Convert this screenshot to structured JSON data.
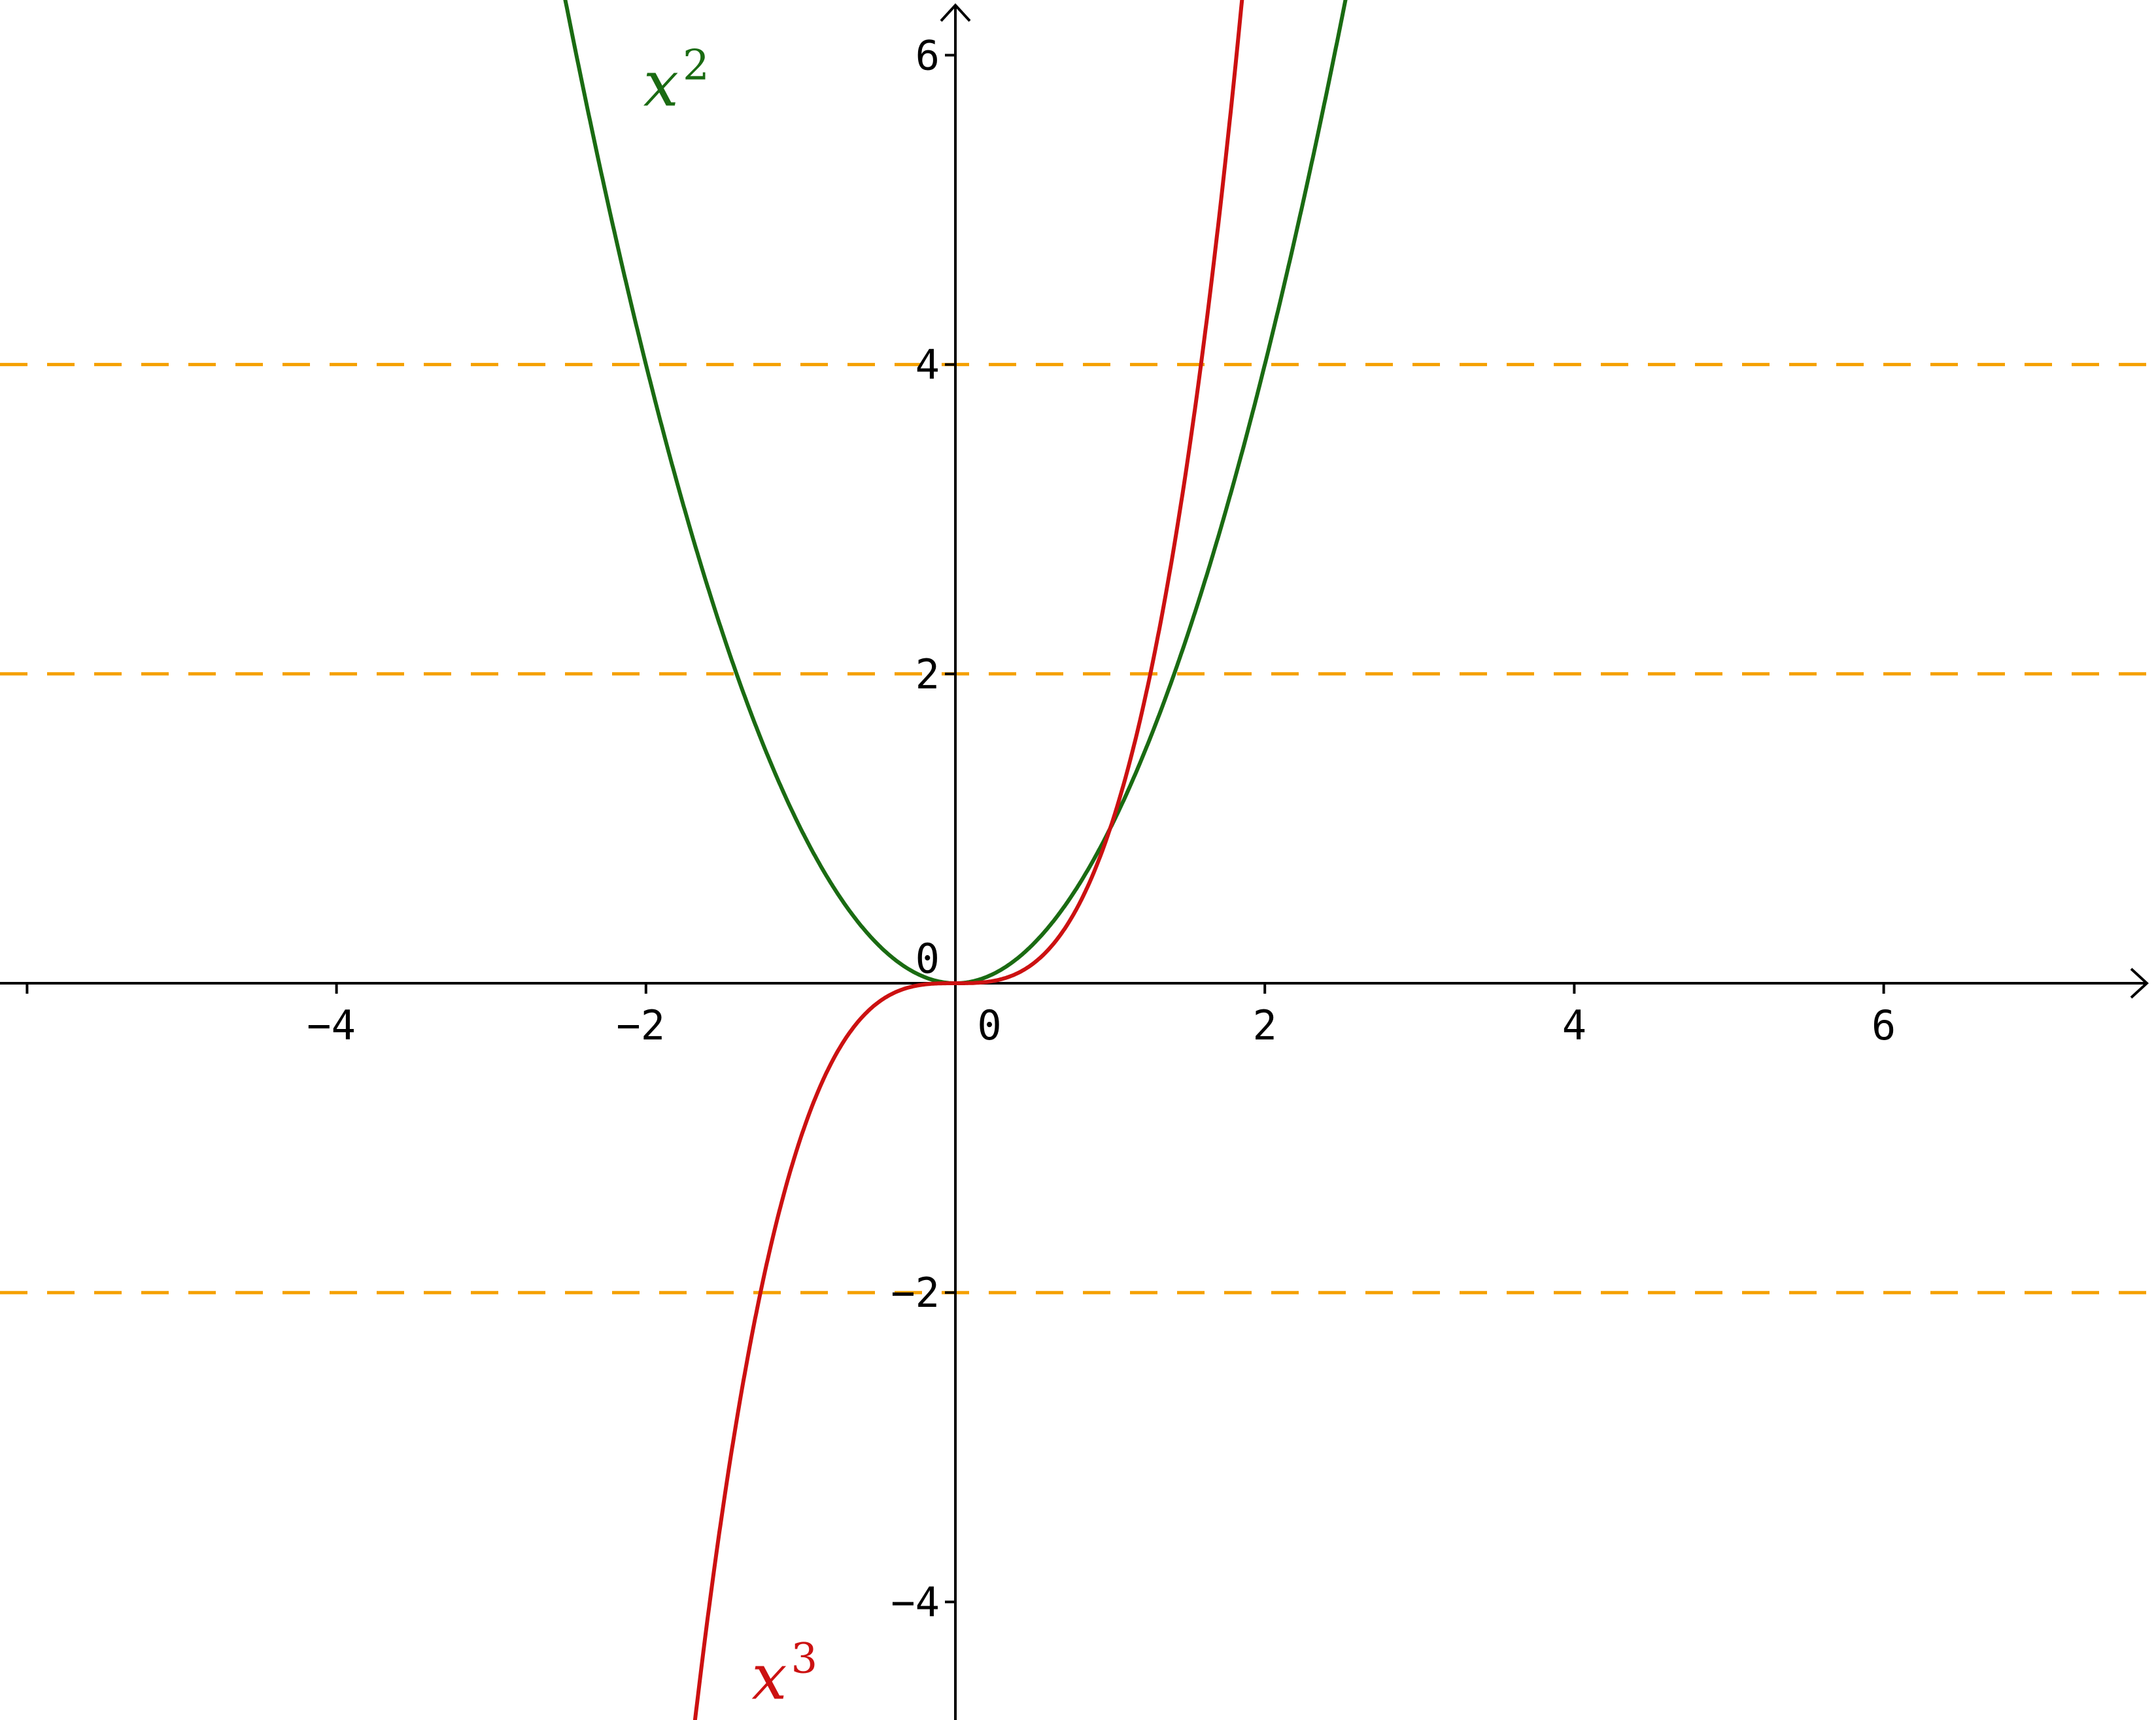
{
  "chart_data": {
    "type": "line",
    "title": "",
    "xlabel": "",
    "ylabel": "",
    "xlim": [
      -6,
      7.6
    ],
    "ylim": [
      -4.7,
      6.3
    ],
    "grid": false,
    "x_ticks": [
      -4,
      -2,
      0,
      2,
      4,
      6
    ],
    "y_ticks": [
      -4,
      -2,
      0,
      2,
      4,
      6
    ],
    "x_tick_labels": [
      "−4",
      "−2",
      "0",
      "2",
      "4",
      "6"
    ],
    "y_tick_labels": [
      "−4",
      "−2",
      "0",
      "2",
      "4",
      "6"
    ],
    "series": [
      {
        "name": "x²",
        "label_base": "x",
        "label_exp": "2",
        "exponent": 2,
        "color": "#1a6b12",
        "label_at": [
          -2.0,
          5.8
        ]
      },
      {
        "name": "x³",
        "label_base": "x",
        "label_exp": "3",
        "exponent": 3,
        "color": "#cc1111",
        "label_at": [
          -1.3,
          -4.5
        ]
      }
    ],
    "reference_lines": [
      {
        "y": 4,
        "style": "dashed",
        "color": "#f5a000"
      },
      {
        "y": 2,
        "style": "dashed",
        "color": "#f5a000"
      },
      {
        "y": -2,
        "style": "dashed",
        "color": "#f5a000"
      }
    ]
  }
}
